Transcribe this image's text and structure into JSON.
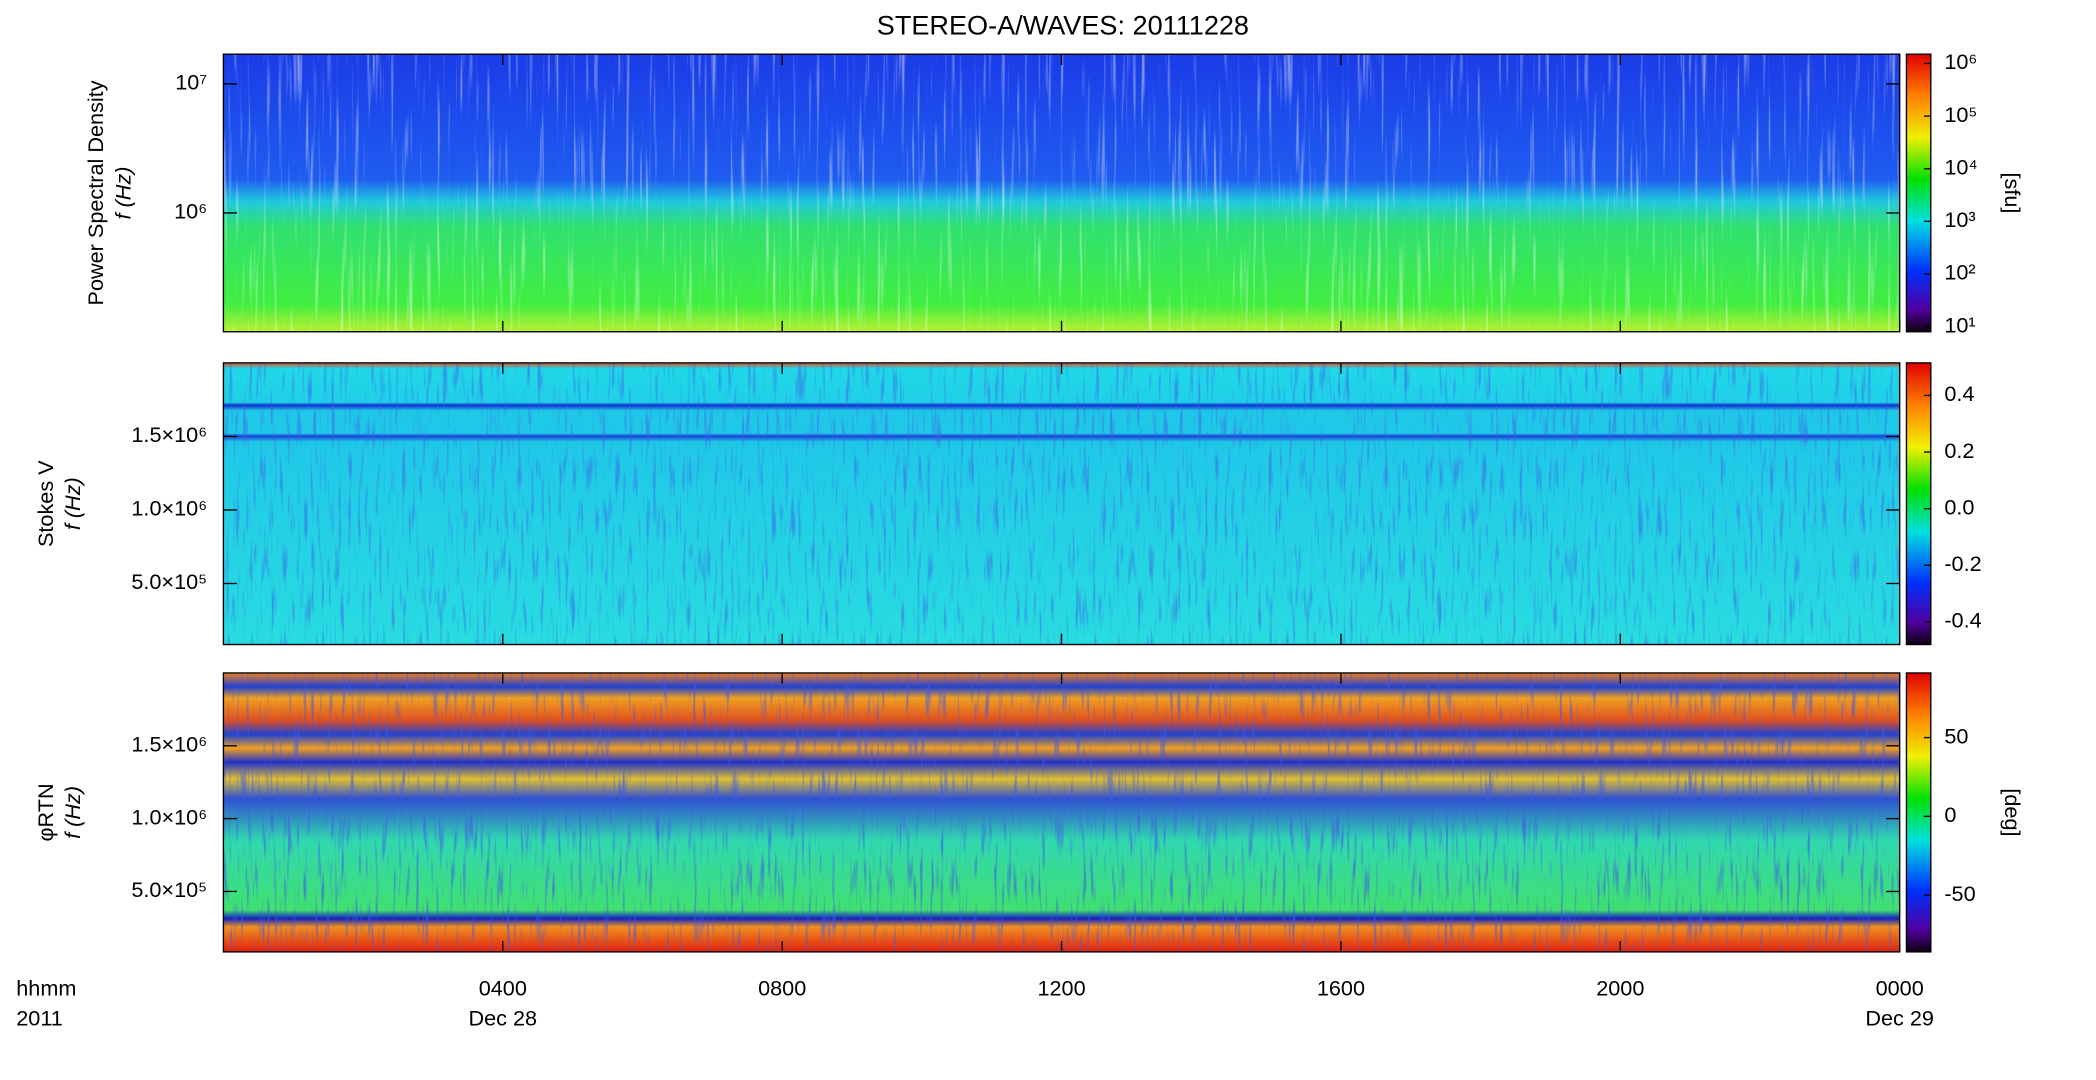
{
  "chart_data": {
    "type": "spectrogram",
    "title": "STEREO-A/WAVES: 20111228",
    "xlim": [
      0,
      24
    ],
    "xticks": [
      {
        "value": 4,
        "label": "0400"
      },
      {
        "value": 8,
        "label": "0800"
      },
      {
        "value": 12,
        "label": "1200"
      },
      {
        "value": 16,
        "label": "1600"
      },
      {
        "value": 20,
        "label": "2000"
      },
      {
        "value": 24,
        "label": "0000"
      }
    ],
    "date_labels": [
      {
        "value": 4,
        "label": "Dec 28"
      },
      {
        "value": 24,
        "label": "Dec 29"
      }
    ],
    "xlabel": [
      "hhmm",
      "2011"
    ],
    "panels": [
      {
        "ylabel": [
          "Power Spectral Density",
          "f (Hz)"
        ],
        "yscale": "log",
        "ylim": [
          120000,
          17000000
        ],
        "yticks": [
          {
            "value": 1000000,
            "label": "10⁶"
          },
          {
            "value": 10000000,
            "label": "10⁷"
          }
        ],
        "colorbar": {
          "scale": "log",
          "lim": [
            8,
            1500000
          ],
          "label": "[sfu]",
          "ticks": [
            {
              "value": 10,
              "label": "10¹"
            },
            {
              "value": 100,
              "label": "10²"
            },
            {
              "value": 1000,
              "label": "10³"
            },
            {
              "value": 10000,
              "label": "10⁴"
            },
            {
              "value": 100000,
              "label": "10⁵"
            },
            {
              "value": 1000000,
              "label": "10⁶"
            }
          ]
        }
      },
      {
        "ylabel": [
          "Stokes V",
          "f (Hz)"
        ],
        "yscale": "linear",
        "ylim": [
          85000,
          2000000
        ],
        "yticks": [
          {
            "value": 500000,
            "label": "5.0×10⁵"
          },
          {
            "value": 1000000,
            "label": "1.0×10⁶"
          },
          {
            "value": 1500000,
            "label": "1.5×10⁶"
          }
        ],
        "colorbar": {
          "scale": "linear",
          "lim": [
            -0.48,
            0.515
          ],
          "ticks": [
            -0.4,
            -0.2,
            {
              "value": 0,
              "label": "0.0"
            },
            0.2,
            0.4
          ]
        }
      },
      {
        "ylabel": [
          "φRTN",
          "f (Hz)"
        ],
        "yscale": "linear",
        "ylim": [
          85000,
          2000000
        ],
        "yticks": [
          {
            "value": 500000,
            "label": "5.0×10⁵"
          },
          {
            "value": 1000000,
            "label": "1.0×10⁶"
          },
          {
            "value": 1500000,
            "label": "1.5×10⁶"
          }
        ],
        "colorbar": {
          "scale": "linear",
          "lim": [
            -86,
            91
          ],
          "label": "[deg]",
          "ticks": [
            -50,
            0,
            50
          ]
        }
      }
    ]
  }
}
